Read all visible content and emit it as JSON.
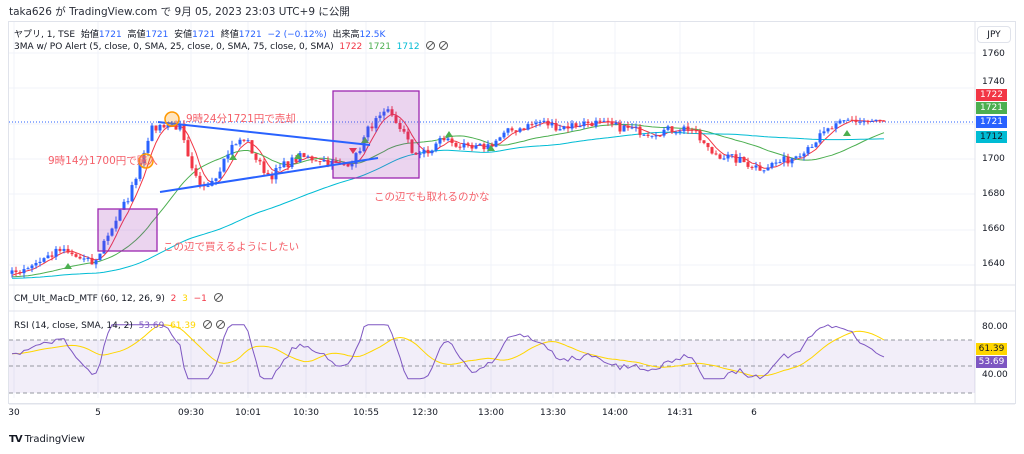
{
  "published": "taka626 が TradingView.com で 9月 05, 2023 23:03 UTC+9 に公開",
  "symbol": {
    "name": "ヤプリ, 1, TSE",
    "open_label": "始値",
    "open": "1721",
    "high_label": "高値",
    "high": "1721",
    "low_label": "安値",
    "low": "1721",
    "close_label": "終値",
    "close": "1721",
    "change": "−2 (−0.12%)",
    "volume_label": "出来高",
    "volume": "12.5K"
  },
  "indicators": {
    "ma": {
      "label": "3MA w/ PO Alert (5, close, 0, SMA, 25, close, 0, SMA, 75, close, 0, SMA)",
      "v1": "1722",
      "v2": "1721",
      "v3": "1712"
    },
    "macd": {
      "label": "CM_Ult_MacD_MTF (60, 12, 26, 9)",
      "v1": "2",
      "v2": "3",
      "v3": "−1"
    },
    "rsi": {
      "label": "RSI (14, close, SMA, 14, 2)",
      "v1": "53.69",
      "v2": "61.39"
    }
  },
  "price_axis": {
    "currency": "JPY",
    "ticks": [
      "1760",
      "1740",
      "1700",
      "1680",
      "1660",
      "1640"
    ],
    "badges": [
      "1722",
      "1721",
      "1721",
      "1712"
    ]
  },
  "rsi_axis": {
    "ticks": [
      "80.00",
      "40.00"
    ],
    "badges": [
      "61.39",
      "53.69"
    ]
  },
  "time_axis": [
    "30",
    "5",
    "09:30",
    "10:01",
    "10:30",
    "10:55",
    "12:30",
    "13:00",
    "13:30",
    "14:00",
    "14:31",
    "6"
  ],
  "annotations": {
    "sell": "9時24分1721円で売却",
    "buy": "9時14分1700円で購入",
    "want_buy": "この辺で買えるようにしたい",
    "can_take": "この辺でも取れるのかな"
  },
  "colors": {
    "up": "#2962ff",
    "down": "#f23645",
    "ma5": "#f23645",
    "ma25": "#4caf50",
    "ma75": "#00bcd4",
    "rsi": "#7e57c2",
    "rsi_ma": "#ffd600",
    "box": "#9c27b0",
    "note": "#f5606a"
  },
  "footer": "TradingView"
}
